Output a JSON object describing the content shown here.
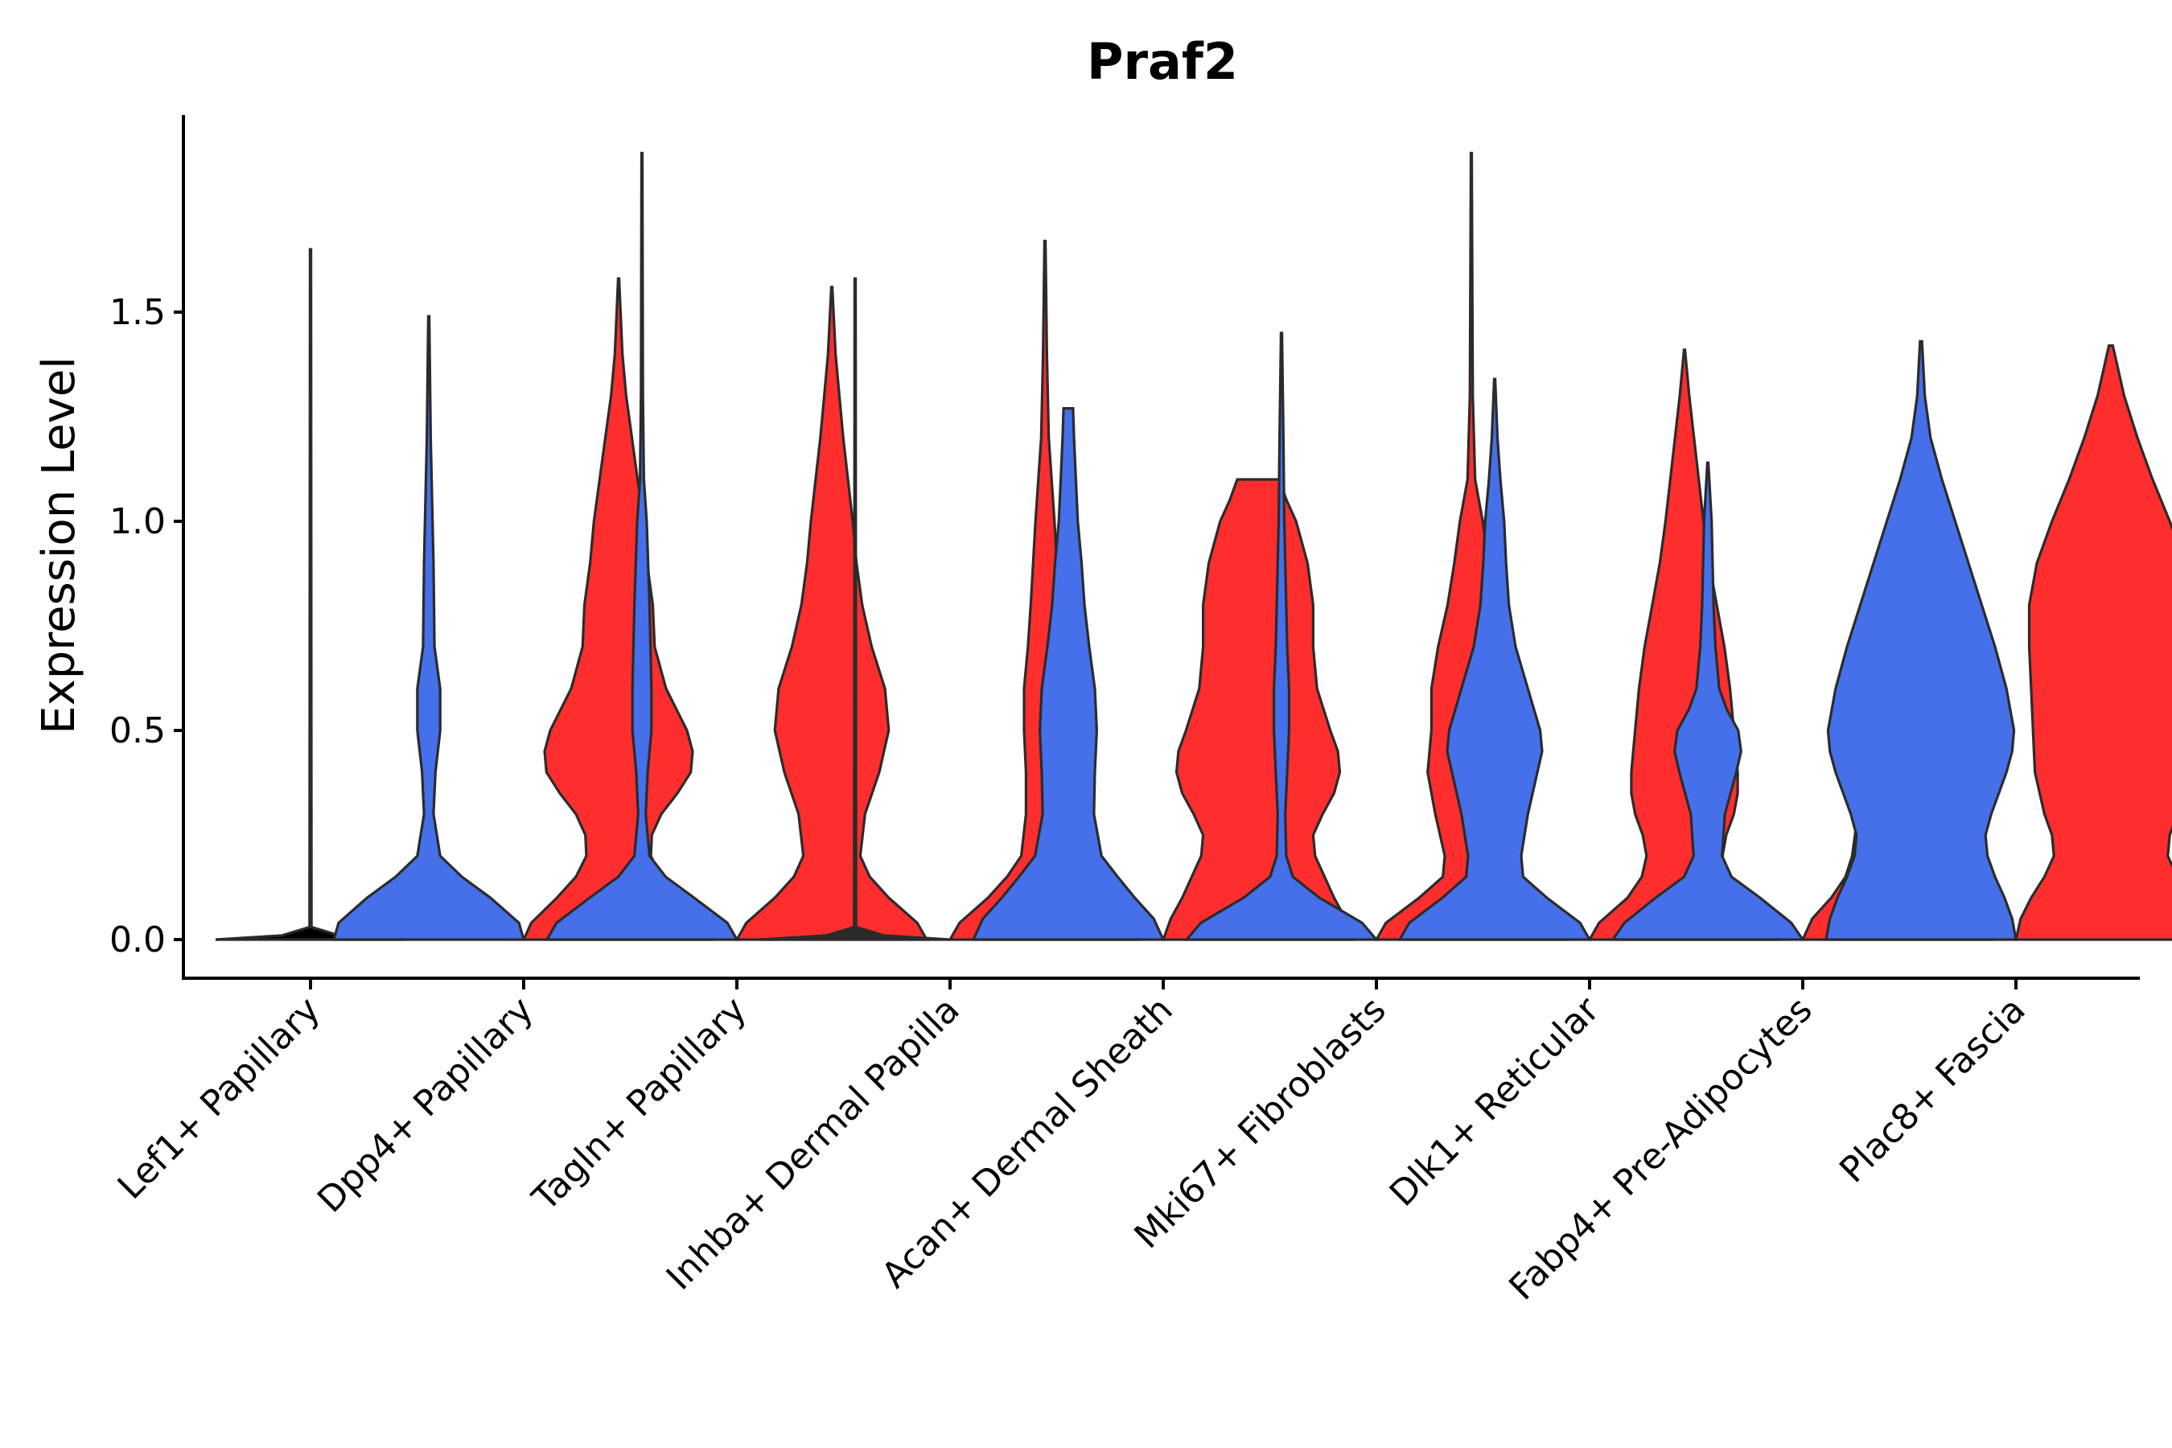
{
  "chart_data": {
    "type": "violin",
    "title": "Praf2",
    "xlabel": "",
    "ylabel": "Expression Level",
    "ylim": [
      -0.095,
      1.97
    ],
    "yticks": [
      0.0,
      0.5,
      1.0,
      1.5
    ],
    "ytick_labels": [
      "0.0",
      "0.5",
      "1.0",
      "1.5"
    ],
    "grid": false,
    "legend": "none",
    "colors": {
      "group1": "#4570ea",
      "group2": "#ff2e2e",
      "outline": "#2b2b2b"
    },
    "categories": [
      "Lef1+ Papillary",
      "Dpp4+ Papillary",
      "Tagln+ Papillary",
      "Inhba+ Dermal Papilla",
      "Acan+ Dermal Sheath",
      "Mki67+ Fibroblasts",
      "Dlk1+ Reticular",
      "Fabp4+ Pre-Adipocytes",
      "Plac8+ Fascia"
    ],
    "violins": [
      {
        "category": "Lef1+ Papillary",
        "split": false,
        "max": 1.65,
        "profile": [
          [
            0,
            1
          ],
          [
            0.01,
            0.3
          ],
          [
            0.03,
            0.01
          ],
          [
            1.65,
            0.005
          ]
        ]
      },
      {
        "category": "Dpp4+ Papillary",
        "side": "left",
        "color": "group1",
        "max": 1.49,
        "profile": [
          [
            0,
            1
          ],
          [
            0.04,
            0.95
          ],
          [
            0.1,
            0.65
          ],
          [
            0.15,
            0.35
          ],
          [
            0.2,
            0.12
          ],
          [
            0.3,
            0.05
          ],
          [
            0.4,
            0.07
          ],
          [
            0.5,
            0.12
          ],
          [
            0.6,
            0.12
          ],
          [
            0.7,
            0.06
          ],
          [
            0.9,
            0.05
          ],
          [
            1.0,
            0.04
          ],
          [
            1.2,
            0.02
          ],
          [
            1.49,
            0.005
          ]
        ]
      },
      {
        "category": "Dpp4+ Papillary",
        "side": "right",
        "color": "group2",
        "max": 1.58,
        "profile": [
          [
            0,
            1
          ],
          [
            0.04,
            0.92
          ],
          [
            0.1,
            0.65
          ],
          [
            0.15,
            0.45
          ],
          [
            0.2,
            0.34
          ],
          [
            0.25,
            0.35
          ],
          [
            0.3,
            0.45
          ],
          [
            0.35,
            0.62
          ],
          [
            0.4,
            0.76
          ],
          [
            0.45,
            0.78
          ],
          [
            0.5,
            0.72
          ],
          [
            0.6,
            0.5
          ],
          [
            0.7,
            0.38
          ],
          [
            0.8,
            0.36
          ],
          [
            0.9,
            0.3
          ],
          [
            1.0,
            0.26
          ],
          [
            1.1,
            0.2
          ],
          [
            1.2,
            0.14
          ],
          [
            1.3,
            0.08
          ],
          [
            1.4,
            0.04
          ],
          [
            1.5,
            0.02
          ],
          [
            1.58,
            0.005
          ]
        ]
      },
      {
        "category": "Tagln+ Papillary",
        "side": "left",
        "color": "group1",
        "max": 1.88,
        "profile": [
          [
            0,
            1
          ],
          [
            0.04,
            0.9
          ],
          [
            0.1,
            0.55
          ],
          [
            0.15,
            0.25
          ],
          [
            0.2,
            0.08
          ],
          [
            0.3,
            0.04
          ],
          [
            0.4,
            0.06
          ],
          [
            0.5,
            0.1
          ],
          [
            0.6,
            0.1
          ],
          [
            0.8,
            0.08
          ],
          [
            1.0,
            0.05
          ],
          [
            1.1,
            0.02
          ],
          [
            1.3,
            0.01
          ],
          [
            1.88,
            0.004
          ]
        ]
      },
      {
        "category": "Tagln+ Papillary",
        "side": "right",
        "color": "group2",
        "max": 1.56,
        "profile": [
          [
            0,
            1
          ],
          [
            0.04,
            0.9
          ],
          [
            0.1,
            0.6
          ],
          [
            0.15,
            0.4
          ],
          [
            0.2,
            0.3
          ],
          [
            0.3,
            0.35
          ],
          [
            0.4,
            0.5
          ],
          [
            0.5,
            0.6
          ],
          [
            0.6,
            0.56
          ],
          [
            0.7,
            0.42
          ],
          [
            0.8,
            0.32
          ],
          [
            0.9,
            0.26
          ],
          [
            1.0,
            0.22
          ],
          [
            1.1,
            0.17
          ],
          [
            1.2,
            0.12
          ],
          [
            1.3,
            0.08
          ],
          [
            1.4,
            0.04
          ],
          [
            1.56,
            0.005
          ]
        ]
      },
      {
        "category": "Inhba+ Dermal Papilla",
        "side": "left",
        "color": "outline",
        "max": 1.58,
        "profile": [
          [
            0,
            1
          ],
          [
            0.01,
            0.3
          ],
          [
            0.03,
            0.01
          ],
          [
            1.58,
            0.005
          ]
        ]
      },
      {
        "category": "Inhba+ Dermal Papilla",
        "side": "right",
        "color": "group2",
        "max": 1.67,
        "profile": [
          [
            0,
            1
          ],
          [
            0.04,
            0.9
          ],
          [
            0.1,
            0.6
          ],
          [
            0.15,
            0.4
          ],
          [
            0.2,
            0.25
          ],
          [
            0.3,
            0.2
          ],
          [
            0.4,
            0.2
          ],
          [
            0.5,
            0.22
          ],
          [
            0.6,
            0.22
          ],
          [
            0.7,
            0.18
          ],
          [
            0.8,
            0.15
          ],
          [
            1.0,
            0.1
          ],
          [
            1.2,
            0.04
          ],
          [
            1.4,
            0.02
          ],
          [
            1.67,
            0.005
          ]
        ]
      },
      {
        "category": "Acan+ Dermal Sheath",
        "side": "left",
        "color": "group1",
        "max": 1.27,
        "profile": [
          [
            0,
            1
          ],
          [
            0.05,
            0.9
          ],
          [
            0.1,
            0.7
          ],
          [
            0.15,
            0.52
          ],
          [
            0.2,
            0.35
          ],
          [
            0.3,
            0.27
          ],
          [
            0.4,
            0.28
          ],
          [
            0.5,
            0.3
          ],
          [
            0.6,
            0.28
          ],
          [
            0.7,
            0.22
          ],
          [
            0.8,
            0.17
          ],
          [
            0.9,
            0.14
          ],
          [
            1.0,
            0.1
          ],
          [
            1.1,
            0.08
          ],
          [
            1.2,
            0.06
          ],
          [
            1.27,
            0.05
          ]
        ]
      },
      {
        "category": "Acan+ Dermal Sheath",
        "side": "right",
        "color": "group2",
        "max": 1.1,
        "profile": [
          [
            0,
            1
          ],
          [
            0.05,
            0.92
          ],
          [
            0.1,
            0.8
          ],
          [
            0.2,
            0.6
          ],
          [
            0.25,
            0.58
          ],
          [
            0.3,
            0.68
          ],
          [
            0.35,
            0.8
          ],
          [
            0.4,
            0.86
          ],
          [
            0.45,
            0.84
          ],
          [
            0.5,
            0.76
          ],
          [
            0.6,
            0.62
          ],
          [
            0.7,
            0.58
          ],
          [
            0.8,
            0.58
          ],
          [
            0.9,
            0.52
          ],
          [
            1.0,
            0.4
          ],
          [
            1.05,
            0.3
          ],
          [
            1.1,
            0.22
          ]
        ]
      },
      {
        "category": "Mki67+ Fibroblasts",
        "side": "left",
        "color": "group1",
        "max": 1.45,
        "profile": [
          [
            0,
            1
          ],
          [
            0.04,
            0.85
          ],
          [
            0.1,
            0.4
          ],
          [
            0.15,
            0.12
          ],
          [
            0.2,
            0.05
          ],
          [
            0.3,
            0.04
          ],
          [
            0.4,
            0.06
          ],
          [
            0.5,
            0.08
          ],
          [
            0.6,
            0.08
          ],
          [
            0.7,
            0.06
          ],
          [
            0.9,
            0.04
          ],
          [
            1.0,
            0.03
          ],
          [
            1.2,
            0.02
          ],
          [
            1.45,
            0.005
          ]
        ]
      },
      {
        "category": "Mki67+ Fibroblasts",
        "side": "right",
        "color": "group2",
        "max": 1.88,
        "profile": [
          [
            0,
            1
          ],
          [
            0.04,
            0.9
          ],
          [
            0.1,
            0.55
          ],
          [
            0.15,
            0.3
          ],
          [
            0.2,
            0.28
          ],
          [
            0.3,
            0.38
          ],
          [
            0.4,
            0.46
          ],
          [
            0.5,
            0.42
          ],
          [
            0.6,
            0.42
          ],
          [
            0.7,
            0.35
          ],
          [
            0.8,
            0.25
          ],
          [
            0.9,
            0.18
          ],
          [
            1.0,
            0.12
          ],
          [
            1.1,
            0.04
          ],
          [
            1.3,
            0.015
          ],
          [
            1.88,
            0.004
          ]
        ]
      },
      {
        "category": "Dlk1+ Reticular",
        "side": "left",
        "color": "group1",
        "max": 1.34,
        "profile": [
          [
            0,
            1
          ],
          [
            0.04,
            0.9
          ],
          [
            0.1,
            0.55
          ],
          [
            0.15,
            0.3
          ],
          [
            0.2,
            0.28
          ],
          [
            0.3,
            0.35
          ],
          [
            0.4,
            0.45
          ],
          [
            0.45,
            0.5
          ],
          [
            0.5,
            0.48
          ],
          [
            0.6,
            0.35
          ],
          [
            0.7,
            0.22
          ],
          [
            0.8,
            0.15
          ],
          [
            0.9,
            0.12
          ],
          [
            1.0,
            0.1
          ],
          [
            1.1,
            0.06
          ],
          [
            1.2,
            0.03
          ],
          [
            1.34,
            0.005
          ]
        ]
      },
      {
        "category": "Dlk1+ Reticular",
        "side": "right",
        "color": "group2",
        "max": 1.41,
        "profile": [
          [
            0,
            1
          ],
          [
            0.04,
            0.9
          ],
          [
            0.1,
            0.6
          ],
          [
            0.15,
            0.45
          ],
          [
            0.2,
            0.4
          ],
          [
            0.25,
            0.44
          ],
          [
            0.3,
            0.52
          ],
          [
            0.35,
            0.56
          ],
          [
            0.4,
            0.56
          ],
          [
            0.5,
            0.52
          ],
          [
            0.6,
            0.48
          ],
          [
            0.7,
            0.42
          ],
          [
            0.8,
            0.34
          ],
          [
            0.9,
            0.26
          ],
          [
            1.0,
            0.2
          ],
          [
            1.1,
            0.15
          ],
          [
            1.2,
            0.1
          ],
          [
            1.3,
            0.05
          ],
          [
            1.41,
            0.005
          ]
        ]
      },
      {
        "category": "Fabp4+ Pre-Adipocytes",
        "side": "left",
        "color": "group1",
        "max": 1.14,
        "profile": [
          [
            0,
            1
          ],
          [
            0.04,
            0.88
          ],
          [
            0.1,
            0.55
          ],
          [
            0.15,
            0.25
          ],
          [
            0.2,
            0.15
          ],
          [
            0.3,
            0.18
          ],
          [
            0.4,
            0.3
          ],
          [
            0.45,
            0.35
          ],
          [
            0.5,
            0.32
          ],
          [
            0.55,
            0.2
          ],
          [
            0.6,
            0.12
          ],
          [
            0.7,
            0.08
          ],
          [
            0.8,
            0.06
          ],
          [
            1.0,
            0.04
          ],
          [
            1.14,
            0.005
          ]
        ]
      },
      {
        "category": "Fabp4+ Pre-Adipocytes",
        "side": "right",
        "color": "group2",
        "max": 0.84,
        "profile": [
          [
            0,
            1
          ],
          [
            0.05,
            0.9
          ],
          [
            0.1,
            0.7
          ],
          [
            0.15,
            0.55
          ],
          [
            0.2,
            0.48
          ],
          [
            0.25,
            0.45
          ],
          [
            0.3,
            0.42
          ],
          [
            0.35,
            0.35
          ],
          [
            0.4,
            0.25
          ],
          [
            0.45,
            0.15
          ],
          [
            0.5,
            0.1
          ],
          [
            0.6,
            0.1
          ],
          [
            0.7,
            0.12
          ],
          [
            0.8,
            0.13
          ],
          [
            0.84,
            0.13
          ]
        ]
      },
      {
        "category": "Plac8+ Fascia",
        "side": "left",
        "color": "group1",
        "max": 1.43,
        "profile": [
          [
            0,
            1
          ],
          [
            0.05,
            0.96
          ],
          [
            0.1,
            0.88
          ],
          [
            0.15,
            0.78
          ],
          [
            0.2,
            0.7
          ],
          [
            0.25,
            0.68
          ],
          [
            0.3,
            0.74
          ],
          [
            0.4,
            0.9
          ],
          [
            0.45,
            0.96
          ],
          [
            0.5,
            0.98
          ],
          [
            0.6,
            0.9
          ],
          [
            0.7,
            0.78
          ],
          [
            0.8,
            0.64
          ],
          [
            0.9,
            0.5
          ],
          [
            1.0,
            0.36
          ],
          [
            1.1,
            0.22
          ],
          [
            1.2,
            0.1
          ],
          [
            1.3,
            0.04
          ],
          [
            1.43,
            0.01
          ]
        ]
      },
      {
        "category": "Plac8+ Fascia",
        "side": "right",
        "color": "group2",
        "max": 1.42,
        "profile": [
          [
            0,
            1
          ],
          [
            0.05,
            0.95
          ],
          [
            0.1,
            0.84
          ],
          [
            0.15,
            0.7
          ],
          [
            0.2,
            0.6
          ],
          [
            0.25,
            0.62
          ],
          [
            0.3,
            0.7
          ],
          [
            0.4,
            0.8
          ],
          [
            0.5,
            0.82
          ],
          [
            0.6,
            0.84
          ],
          [
            0.7,
            0.86
          ],
          [
            0.8,
            0.86
          ],
          [
            0.9,
            0.78
          ],
          [
            1.0,
            0.62
          ],
          [
            1.1,
            0.44
          ],
          [
            1.2,
            0.28
          ],
          [
            1.3,
            0.14
          ],
          [
            1.42,
            0.02
          ]
        ]
      }
    ]
  }
}
